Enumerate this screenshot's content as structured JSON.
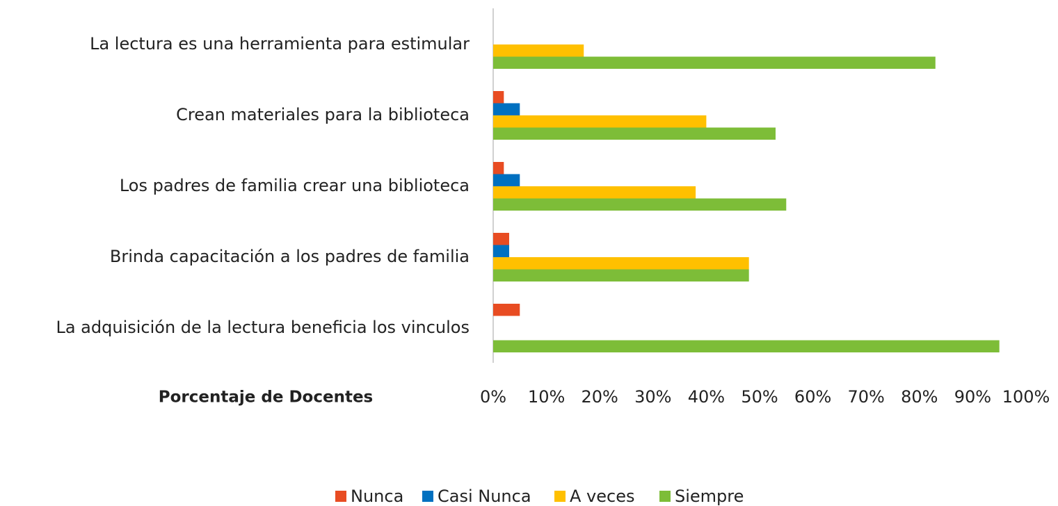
{
  "chart_data": {
    "type": "bar",
    "orientation": "horizontal",
    "x_axis_label": "Porcentaje de Docentes",
    "categories": [
      "La lectura es una herramienta para estimular",
      "Crean materiales para la biblioteca",
      "Los padres de familia crear una biblioteca",
      "Brinda capacitación a los padres de familia",
      "La adquisición de la lectura beneficia los vinculos"
    ],
    "series": [
      {
        "name": "Nunca",
        "color": "#e84c22",
        "values": [
          0,
          2,
          2,
          3,
          5
        ]
      },
      {
        "name": "Casi Nunca",
        "color": "#0070c0",
        "values": [
          0,
          5,
          5,
          3,
          0
        ]
      },
      {
        "name": "A veces",
        "color": "#ffc000",
        "values": [
          17,
          40,
          38,
          48,
          0
        ]
      },
      {
        "name": "Siempre",
        "color": "#7dbd38",
        "values": [
          83,
          53,
          55,
          48,
          95
        ]
      }
    ],
    "xlim": [
      0,
      100
    ],
    "xticks": [
      {
        "value": 0,
        "label": "0%"
      },
      {
        "value": 10,
        "label": "10%"
      },
      {
        "value": 20,
        "label": "20%"
      },
      {
        "value": 30,
        "label": "30%"
      },
      {
        "value": 40,
        "label": "40%"
      },
      {
        "value": 50,
        "label": "50%"
      },
      {
        "value": 60,
        "label": "60%"
      },
      {
        "value": 70,
        "label": "70%"
      },
      {
        "value": 80,
        "label": "80%"
      },
      {
        "value": 90,
        "label": "90%"
      },
      {
        "value": 100,
        "label": "100%"
      }
    ],
    "legend": "bottom",
    "grid": false
  }
}
